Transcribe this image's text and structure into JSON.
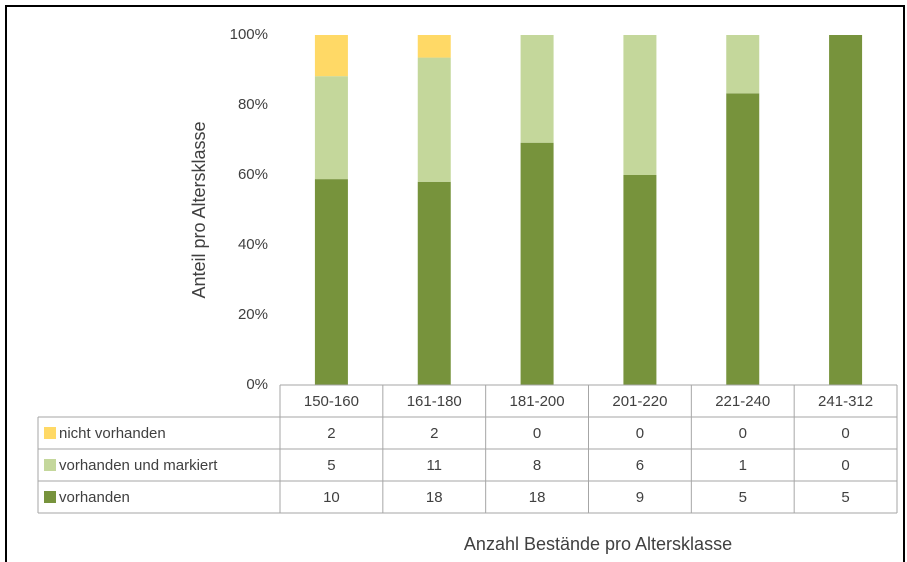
{
  "chart_data": {
    "type": "bar",
    "stacked": "percent",
    "x_label": "Anzahl Bestände pro Altersklasse",
    "y_label": "Anteil pro Altersklasse",
    "categories": [
      "150-160",
      "161-180",
      "181-200",
      "201-220",
      "221-240",
      "241-312"
    ],
    "series": [
      {
        "name": "nicht vorhanden",
        "color": "#ffd966",
        "values": [
          2,
          2,
          0,
          0,
          0,
          0
        ]
      },
      {
        "name": "vorhanden und markiert",
        "color": "#c4d79b",
        "values": [
          5,
          11,
          8,
          6,
          1,
          0
        ]
      },
      {
        "name": "vorhanden",
        "color": "#77933c",
        "values": [
          10,
          18,
          18,
          9,
          5,
          5
        ]
      }
    ],
    "ylim": [
      0,
      100
    ],
    "yticks": [
      {
        "value": 0,
        "label": "0%"
      },
      {
        "value": 20,
        "label": "20%"
      },
      {
        "value": 40,
        "label": "40%"
      },
      {
        "value": 60,
        "label": "60%"
      },
      {
        "value": 80,
        "label": "80%"
      },
      {
        "value": 100,
        "label": "100%"
      }
    ],
    "grid": false,
    "data_table": true
  }
}
